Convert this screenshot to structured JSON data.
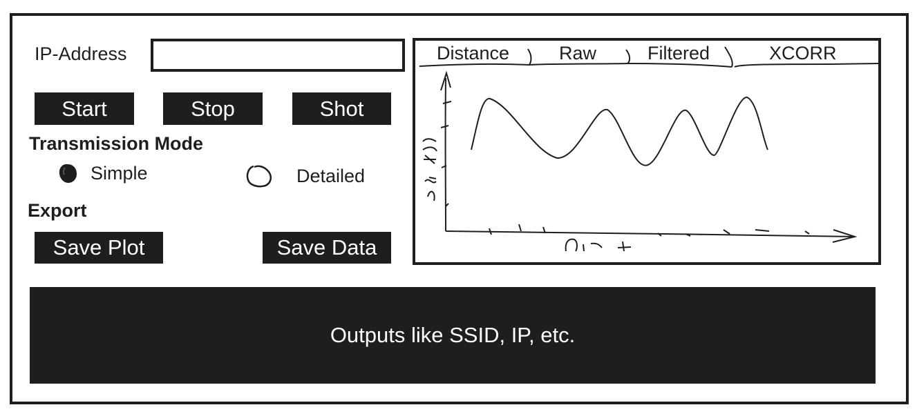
{
  "connection": {
    "ip_label": "IP-Address",
    "ip_value": ""
  },
  "controls": {
    "start_label": "Start",
    "stop_label": "Stop",
    "shot_label": "Shot"
  },
  "transmission": {
    "heading": "Transmission Mode",
    "options": [
      {
        "label": "Simple",
        "selected": true
      },
      {
        "label": "Detailed",
        "selected": false
      }
    ]
  },
  "export": {
    "heading": "Export",
    "save_plot_label": "Save Plot",
    "save_data_label": "Save Data"
  },
  "plot": {
    "tabs": [
      {
        "label": "Distance"
      },
      {
        "label": "Raw"
      },
      {
        "label": "Filtered"
      },
      {
        "label": "XCORR"
      }
    ],
    "ylabel": "Amp",
    "xlabel": "Dist"
  },
  "output": {
    "text": "Outputs like SSID, IP, etc."
  },
  "colors": {
    "ink": "#1e1e1e",
    "background": "#ffffff"
  }
}
